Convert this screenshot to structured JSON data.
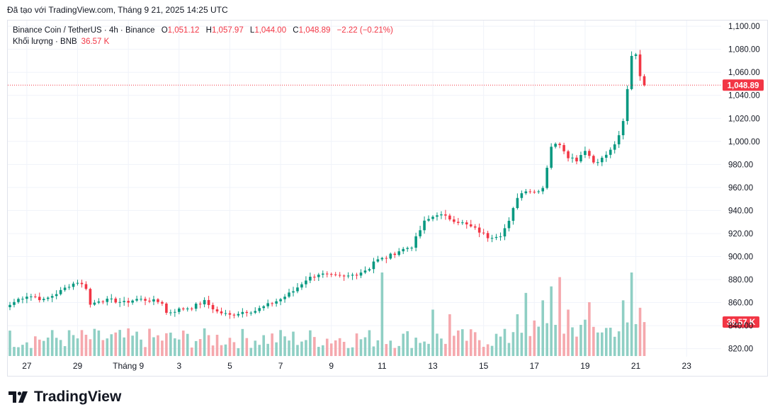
{
  "caption": "Đã tạo với TradingView.com, Tháng 9 21, 2025 14:25 UTC",
  "legend": {
    "symbol": "Binance Coin / TetherUS · 4h · Binance",
    "open_label": "O",
    "open": "1,051.12",
    "high_label": "H",
    "high": "1,057.97",
    "low_label": "L",
    "low": "1,044.00",
    "close_label": "C",
    "close": "1,048.89",
    "change": "−2.22 (−0.21%)",
    "volume_label": "Khối lượng · BNB",
    "volume_value": "36.57 K"
  },
  "logo_text": "TradingView",
  "colors": {
    "up": "#089981",
    "down": "#f23645",
    "vol_up": "#8fcfc4",
    "vol_down": "#f5a8ad",
    "grid": "#f0f3fa",
    "axis_text": "#131722"
  },
  "chart_data": {
    "type": "candlestick",
    "timeframe": "4h",
    "ylim": [
      813,
      1105
    ],
    "y_ticks": [
      "820.00",
      "840.00",
      "860.00",
      "880.00",
      "900.00",
      "920.00",
      "940.00",
      "960.00",
      "980.00",
      "1,000.00",
      "1,020.00",
      "1,040.00",
      "1,060.00",
      "1,080.00",
      "1,100.00"
    ],
    "y_tick_values": [
      820,
      840,
      860,
      880,
      900,
      920,
      940,
      960,
      980,
      1000,
      1020,
      1040,
      1060,
      1080,
      1100
    ],
    "x_ticks": [
      {
        "label": "27",
        "index": 4
      },
      {
        "label": "29",
        "index": 16
      },
      {
        "label": "Tháng 9",
        "index": 28
      },
      {
        "label": "3",
        "index": 40
      },
      {
        "label": "5",
        "index": 52
      },
      {
        "label": "7",
        "index": 64
      },
      {
        "label": "9",
        "index": 76
      },
      {
        "label": "11",
        "index": 88
      },
      {
        "label": "13",
        "index": 100
      },
      {
        "label": "15",
        "index": 112
      },
      {
        "label": "17",
        "index": 124
      },
      {
        "label": "19",
        "index": 136
      },
      {
        "label": "21",
        "index": 148
      },
      {
        "label": "23",
        "index": 160
      }
    ],
    "last_price": 1048.89,
    "last_price_label": "1,048.89",
    "last_volume": 36.57,
    "last_volume_label": "36.57 K",
    "vol_max": 90,
    "anchors": [
      [
        0,
        858
      ],
      [
        2,
        863
      ],
      [
        4,
        866
      ],
      [
        6,
        865
      ],
      [
        8,
        862
      ],
      [
        10,
        866
      ],
      [
        12,
        870
      ],
      [
        14,
        875
      ],
      [
        16,
        878
      ],
      [
        18,
        873
      ],
      [
        19,
        858
      ],
      [
        21,
        862
      ],
      [
        24,
        862
      ],
      [
        27,
        860
      ],
      [
        30,
        863
      ],
      [
        33,
        862
      ],
      [
        36,
        860
      ],
      [
        37,
        851
      ],
      [
        40,
        854
      ],
      [
        43,
        856
      ],
      [
        46,
        861
      ],
      [
        49,
        852
      ],
      [
        52,
        849
      ],
      [
        55,
        852
      ],
      [
        58,
        853
      ],
      [
        61,
        858
      ],
      [
        64,
        863
      ],
      [
        67,
        870
      ],
      [
        70,
        880
      ],
      [
        73,
        885
      ],
      [
        76,
        883
      ],
      [
        79,
        882
      ],
      [
        82,
        885
      ],
      [
        85,
        890
      ],
      [
        86,
        896
      ],
      [
        89,
        899
      ],
      [
        92,
        905
      ],
      [
        95,
        909
      ],
      [
        98,
        930
      ],
      [
        101,
        937
      ],
      [
        104,
        933
      ],
      [
        107,
        929
      ],
      [
        110,
        924
      ],
      [
        113,
        917
      ],
      [
        116,
        919
      ],
      [
        118,
        930
      ],
      [
        120,
        952
      ],
      [
        122,
        958
      ],
      [
        124,
        956
      ],
      [
        126,
        960
      ],
      [
        128,
        996
      ],
      [
        130,
        998
      ],
      [
        132,
        987
      ],
      [
        134,
        984
      ],
      [
        136,
        993
      ],
      [
        138,
        982
      ],
      [
        140,
        985
      ],
      [
        142,
        992
      ],
      [
        144,
        1004
      ],
      [
        145,
        1017
      ],
      [
        146,
        1045
      ],
      [
        147,
        1075
      ],
      [
        148,
        1076
      ],
      [
        149,
        1058
      ],
      [
        150,
        1048.89
      ]
    ],
    "volume_peaks": [
      [
        88,
        90
      ],
      [
        100,
        50
      ],
      [
        104,
        45
      ],
      [
        120,
        45
      ],
      [
        122,
        68
      ],
      [
        126,
        60
      ],
      [
        128,
        75
      ],
      [
        130,
        85
      ],
      [
        132,
        50
      ],
      [
        137,
        58
      ],
      [
        145,
        60
      ],
      [
        147,
        90
      ],
      [
        149,
        52
      ],
      [
        150,
        36.57
      ]
    ]
  }
}
